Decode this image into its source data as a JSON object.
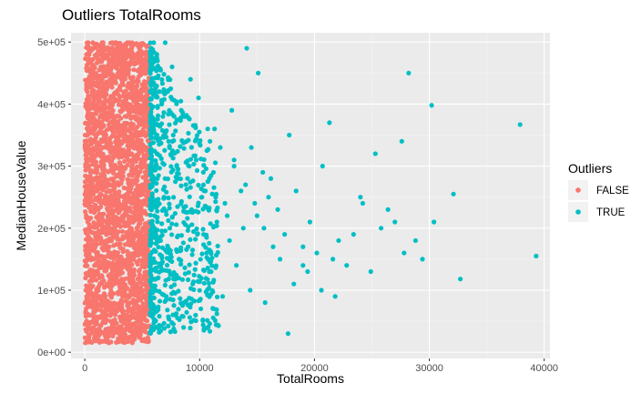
{
  "chart_data": {
    "type": "scatter",
    "title": "Outliers TotalRooms",
    "xlabel": "TotalRooms",
    "ylabel": "MedianHouseValue",
    "xlim": [
      -1200,
      40500
    ],
    "ylim": [
      -10000,
      515000
    ],
    "x_ticks": [
      0,
      10000,
      20000,
      30000,
      40000
    ],
    "x_tick_labels": [
      "0",
      "10000",
      "20000",
      "30000",
      "40000"
    ],
    "y_ticks": [
      0,
      100000,
      200000,
      300000,
      400000,
      500000
    ],
    "y_tick_labels": [
      "0e+00",
      "1e+05",
      "2e+05",
      "3e+05",
      "4e+05",
      "5e+05"
    ],
    "grid": true,
    "panel_background": "#ebebeb",
    "legend": {
      "title": "Outliers",
      "placement": "right",
      "entries": [
        {
          "label": "FALSE",
          "color": "#f8766d"
        },
        {
          "label": "TRUE",
          "color": "#00bfc4"
        }
      ]
    },
    "series": [
      {
        "name": "FALSE",
        "color": "#f8766d",
        "x": [
          50,
          150,
          250,
          400,
          550,
          700,
          850,
          1000,
          1150,
          1300,
          1450,
          1600,
          1750,
          1900,
          2050,
          2200,
          2350,
          2500,
          2650,
          2800,
          2950,
          3100,
          3250,
          3400,
          3550,
          3700,
          3850,
          4000,
          4150,
          4300,
          4450,
          4600,
          4750,
          4900,
          5050,
          5200,
          5350,
          5500,
          5650,
          300,
          900,
          1500,
          2100,
          2700,
          3300,
          3900,
          4500,
          5100,
          600,
          1800,
          3000,
          4200,
          5400,
          1200,
          2400,
          3600,
          4800,
          200,
          1000,
          2000,
          3000,
          4000,
          5000,
          800,
          1600,
          2600,
          3400,
          4400
        ],
        "y": [
          15000,
          480000,
          60000,
          320000,
          150000,
          499000,
          230000,
          35000,
          410000,
          270000,
          90000,
          499000,
          350000,
          180000,
          25000,
          440000,
          300000,
          120000,
          499000,
          380000,
          210000,
          55000,
          460000,
          250000,
          140000,
          499000,
          330000,
          190000,
          70000,
          420000,
          280000,
          110000,
          470000,
          230000,
          160000,
          390000,
          260000,
          100000,
          300000,
          499000,
          20000,
          499000,
          15000,
          499000,
          30000,
          499000,
          40000,
          450000,
          400000,
          50000,
          480000,
          80000,
          350000,
          20000,
          499000,
          45000,
          420000,
          250000,
          180000,
          310000,
          240000,
          200000,
          180000,
          150000,
          330000,
          270000,
          210000,
          290000
        ]
      },
      {
        "name": "TRUE",
        "color": "#00bfc4",
        "x": [
          6000,
          6200,
          6500,
          6800,
          7000,
          7300,
          7600,
          8000,
          8400,
          8800,
          9200,
          9700,
          10200,
          10700,
          11200,
          11800,
          12400,
          13000,
          13600,
          14100,
          14800,
          15100,
          15600,
          16200,
          16800,
          17400,
          17800,
          18400,
          19000,
          19600,
          20200,
          20700,
          21300,
          21600,
          22100,
          22800,
          23400,
          24000,
          24200,
          24900,
          25300,
          25800,
          26400,
          27000,
          27600,
          27800,
          28200,
          28800,
          29400,
          30200,
          30400,
          32100,
          32700,
          37900,
          39300,
          6400,
          7100,
          7900,
          8600,
          9400,
          10100,
          11000,
          12000,
          13200,
          14400,
          15700,
          17000,
          18200,
          19400,
          20600,
          21800,
          6600,
          7400,
          8200,
          9000,
          9800,
          10600,
          11500,
          12600,
          13800,
          15000,
          16400,
          17700,
          19000,
          6900,
          8100,
          9300,
          10500,
          12200,
          14000,
          16000,
          6300,
          7700,
          9100,
          10900,
          13000,
          15500,
          6700,
          8500,
          11300,
          14500,
          7200,
          9900,
          12800
        ],
        "y": [
          499000,
          470000,
          420000,
          380000,
          499000,
          340000,
          460000,
          300000,
          390000,
          270000,
          440000,
          310000,
          250000,
          360000,
          290000,
          330000,
          220000,
          300000,
          260000,
          490000,
          240000,
          450000,
          200000,
          280000,
          230000,
          190000,
          350000,
          260000,
          170000,
          210000,
          160000,
          300000,
          370000,
          150000,
          180000,
          140000,
          190000,
          250000,
          240000,
          130000,
          320000,
          200000,
          230000,
          210000,
          340000,
          160000,
          450000,
          180000,
          150000,
          398000,
          210000,
          255000,
          118000,
          367000,
          155000,
          120000,
          90000,
          60000,
          40000,
          110000,
          70000,
          130000,
          90000,
          140000,
          100000,
          80000,
          150000,
          110000,
          130000,
          100000,
          90000,
          180000,
          200000,
          150000,
          170000,
          190000,
          160000,
          210000,
          180000,
          200000,
          220000,
          170000,
          30000,
          140000,
          250000,
          280000,
          230000,
          260000,
          240000,
          270000,
          250000,
          320000,
          350000,
          300000,
          340000,
          310000,
          290000,
          400000,
          380000,
          360000,
          330000,
          420000,
          410000,
          390000
        ]
      }
    ]
  }
}
